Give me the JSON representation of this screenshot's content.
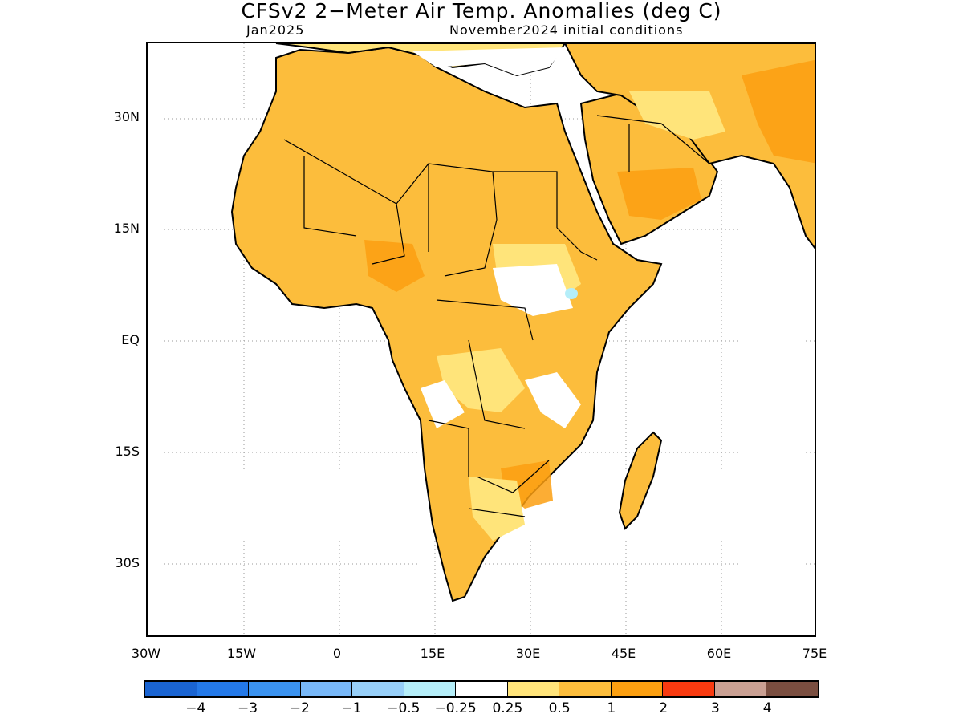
{
  "map": {
    "title": "CFSv2 2−Meter Air Temp. Anomalies (deg C)",
    "valid_month": "Jan2025",
    "initial_conditions": "November2024 initial conditions",
    "lat_labels": [
      "30N",
      "15N",
      "EQ",
      "15S",
      "30S"
    ],
    "lon_labels": [
      "30W",
      "15W",
      "0",
      "15E",
      "30E",
      "45E",
      "60E",
      "75E"
    ],
    "region": "Africa",
    "colorbar": {
      "colors": [
        "#1a64d2",
        "#2479e8",
        "#3b93f0",
        "#78b8f8",
        "#97cff8",
        "#b5eef9",
        "#ffffff",
        "#ffe47a",
        "#fcbd3c",
        "#fb9f10",
        "#f83a10",
        "#caa093",
        "#7a4e40"
      ],
      "labels": [
        "−4",
        "−3",
        "−2",
        "−1",
        "−0.5",
        "−0.25",
        "0.25",
        "0.5",
        "1",
        "2",
        "3",
        "4"
      ]
    }
  }
}
